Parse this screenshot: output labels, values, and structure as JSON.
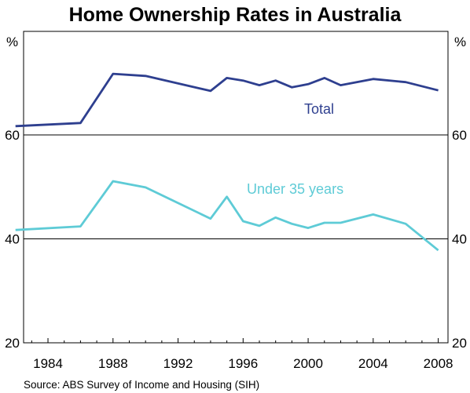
{
  "chart_data": {
    "type": "line",
    "title": "Home Ownership Rates in Australia",
    "y_unit_left": "%",
    "y_unit_right": "%",
    "xlim": [
      1982.5,
      2008.6
    ],
    "x_ticks": [
      1984,
      1988,
      1992,
      1996,
      2000,
      2004,
      2008
    ],
    "x_tick_labels": [
      "1984",
      "1988",
      "1992",
      "1996",
      "2000",
      "2004",
      "2008"
    ],
    "panels": [
      {
        "ylim": [
          60,
          80
        ],
        "y_ticks": [
          60
        ],
        "y_tick_labels": [
          "60"
        ]
      },
      {
        "ylim": [
          20,
          60
        ],
        "y_ticks": [
          20,
          40
        ],
        "y_tick_labels": [
          "20",
          "40"
        ]
      }
    ],
    "series": [
      {
        "name": "Total",
        "panel": 0,
        "color": "#2e3f8f",
        "label_text": "Total",
        "x": [
          1982,
          1986,
          1988,
          1990,
          1994,
          1995,
          1996,
          1997,
          1998,
          1999,
          2000,
          2001,
          2002,
          2004,
          2006,
          2008
        ],
        "y": [
          61.7,
          62.3,
          71.8,
          71.4,
          68.5,
          71.0,
          70.5,
          69.6,
          70.5,
          69.2,
          69.8,
          71.0,
          69.6,
          70.8,
          70.2,
          68.6
        ]
      },
      {
        "name": "Under 35 years",
        "panel": 1,
        "color": "#5ecbd6",
        "label_text": "Under 35 years",
        "x": [
          1982,
          1986,
          1988,
          1990,
          1994,
          1995,
          1996,
          1997,
          1998,
          1999,
          2000,
          2001,
          2002,
          2004,
          2006,
          2008
        ],
        "y": [
          41.7,
          42.4,
          51.1,
          49.9,
          43.9,
          48.1,
          43.4,
          42.5,
          44.1,
          42.9,
          42.1,
          43.1,
          43.1,
          44.7,
          42.9,
          37.8
        ]
      }
    ],
    "source": "Source: ABS Survey of Income and Housing (SIH)"
  }
}
